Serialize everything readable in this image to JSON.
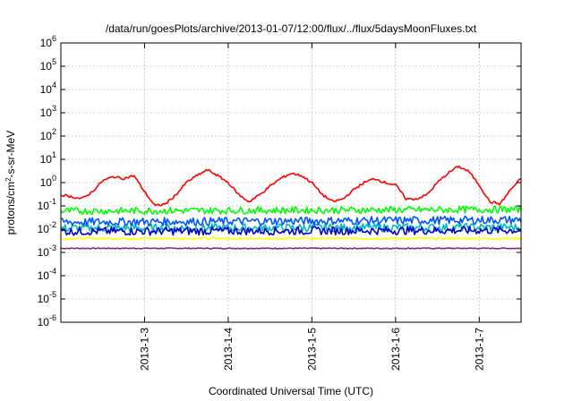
{
  "chart_data": {
    "type": "line",
    "title": "/data/run/goesPlots/archive/2013-01-07/12:00/flux/../flux/5daysMoonFluxes.txt",
    "xlabel": "Coordinated Universal Time (UTC)",
    "ylabel": "protons/cm²-s-sr-MeV",
    "x_range": [
      "2013-01-02T00:00",
      "2013-01-07T12:00"
    ],
    "x_ticks": [
      "2013-1-3",
      "2013-1-4",
      "2013-1-5",
      "2013-1-6",
      "2013-1-7"
    ],
    "y_scale": "log",
    "ylim": [
      1e-06,
      1000000.0
    ],
    "y_tick_exponents": [
      -6,
      -5,
      -4,
      -3,
      -2,
      -1,
      0,
      1,
      2,
      3,
      4,
      5,
      6
    ],
    "grid": true,
    "series": [
      {
        "color": "#ff0000",
        "x": [
          "2013-01-02T00:00",
          "2013-01-02T03:00",
          "2013-01-02T06:00",
          "2013-01-02T09:00",
          "2013-01-02T12:00",
          "2013-01-02T15:00",
          "2013-01-02T18:00",
          "2013-01-02T21:00",
          "2013-01-03T00:00",
          "2013-01-03T03:00",
          "2013-01-03T06:00",
          "2013-01-03T09:00",
          "2013-01-03T12:00",
          "2013-01-03T15:00",
          "2013-01-03T18:00",
          "2013-01-03T21:00",
          "2013-01-04T00:00",
          "2013-01-04T03:00",
          "2013-01-04T06:00",
          "2013-01-04T09:00",
          "2013-01-04T12:00",
          "2013-01-04T15:00",
          "2013-01-04T18:00",
          "2013-01-04T21:00",
          "2013-01-05T00:00",
          "2013-01-05T03:00",
          "2013-01-05T06:00",
          "2013-01-05T09:00",
          "2013-01-05T12:00",
          "2013-01-05T15:00",
          "2013-01-05T18:00",
          "2013-01-05T21:00",
          "2013-01-06T00:00",
          "2013-01-06T03:00",
          "2013-01-06T06:00",
          "2013-01-06T09:00",
          "2013-01-06T12:00",
          "2013-01-06T15:00",
          "2013-01-06T18:00",
          "2013-01-06T21:00",
          "2013-01-07T00:00",
          "2013-01-07T03:00",
          "2013-01-07T06:00",
          "2013-01-07T09:00",
          "2013-01-07T12:00"
        ],
        "values": [
          0.3,
          0.25,
          0.2,
          0.4,
          1.2,
          1.8,
          1.5,
          2.0,
          0.4,
          0.1,
          0.12,
          0.3,
          1.0,
          2.0,
          3.5,
          2.0,
          1.0,
          0.3,
          0.15,
          0.3,
          0.7,
          1.5,
          2.5,
          2.0,
          1.0,
          0.3,
          0.15,
          0.2,
          0.5,
          1.0,
          1.5,
          1.0,
          0.8,
          0.2,
          0.2,
          0.3,
          1.0,
          2.5,
          5.0,
          3.0,
          0.8,
          0.15,
          0.12,
          0.5,
          1.5
        ]
      },
      {
        "color": "#00ff00",
        "x": [
          "2013-01-02T00:00",
          "2013-01-07T12:00"
        ],
        "values": [
          0.06,
          0.07
        ]
      },
      {
        "color": "#0055ff",
        "x": [
          "2013-01-02T00:00",
          "2013-01-07T12:00"
        ],
        "values": [
          0.02,
          0.025
        ]
      },
      {
        "color": "#00bbbb",
        "x": [
          "2013-01-02T00:00",
          "2013-01-07T12:00"
        ],
        "values": [
          0.011,
          0.012
        ]
      },
      {
        "color": "#0000cc",
        "x": [
          "2013-01-02T00:00",
          "2013-01-07T12:00"
        ],
        "values": [
          0.008,
          0.009
        ]
      },
      {
        "color": "#ffff00",
        "x": [
          "2013-01-02T00:00",
          "2013-01-07T12:00"
        ],
        "values": [
          0.004,
          0.004
        ]
      },
      {
        "color": "#7b2f7b",
        "x": [
          "2013-01-02T00:00",
          "2013-01-07T12:00"
        ],
        "values": [
          0.0015,
          0.0015
        ]
      }
    ]
  }
}
